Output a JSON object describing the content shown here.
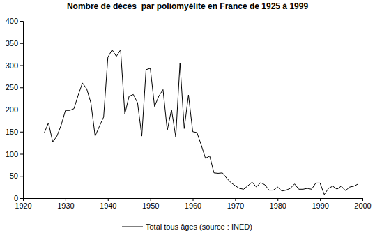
{
  "chart_data": {
    "type": "line",
    "title": "Nombre de décès  par poliomyélite en France de 1925 à 1999",
    "x": [
      1925,
      1926,
      1927,
      1928,
      1929,
      1930,
      1931,
      1932,
      1933,
      1934,
      1935,
      1936,
      1937,
      1938,
      1939,
      1940,
      1941,
      1942,
      1943,
      1944,
      1945,
      1946,
      1947,
      1948,
      1949,
      1950,
      1951,
      1952,
      1953,
      1954,
      1955,
      1956,
      1957,
      1958,
      1959,
      1960,
      1961,
      1962,
      1963,
      1964,
      1965,
      1966,
      1967,
      1968,
      1969,
      1970,
      1971,
      1972,
      1973,
      1974,
      1975,
      1976,
      1977,
      1978,
      1979,
      1980,
      1981,
      1982,
      1983,
      1984,
      1985,
      1986,
      1987,
      1988,
      1989,
      1990,
      1991,
      1992,
      1993,
      1994,
      1995,
      1996,
      1997,
      1998,
      1999
    ],
    "series": [
      {
        "name": "Total tous âges (source : INED)",
        "color": "#000000",
        "values": [
          147,
          170,
          127,
          140,
          165,
          198,
          198,
          202,
          232,
          260,
          247,
          215,
          140,
          162,
          183,
          318,
          335,
          320,
          335,
          190,
          230,
          234,
          215,
          140,
          290,
          293,
          207,
          230,
          245,
          153,
          200,
          138,
          305,
          157,
          233,
          150,
          148,
          120,
          90,
          95,
          57,
          56,
          57,
          45,
          35,
          28,
          22,
          20,
          28,
          36,
          25,
          35,
          30,
          18,
          18,
          25,
          16,
          18,
          22,
          32,
          20,
          20,
          22,
          20,
          34,
          34,
          8,
          22,
          27,
          20,
          27,
          17,
          25,
          27,
          32
        ]
      }
    ],
    "xlim": [
      1920,
      2000
    ],
    "xticks": [
      1920,
      1930,
      1940,
      1950,
      1960,
      1970,
      1980,
      1990,
      2000
    ],
    "ylim": [
      0,
      400
    ],
    "yticks": [
      0,
      50,
      100,
      150,
      200,
      250,
      300,
      350,
      400
    ],
    "grid": false,
    "legend": "bottom"
  }
}
